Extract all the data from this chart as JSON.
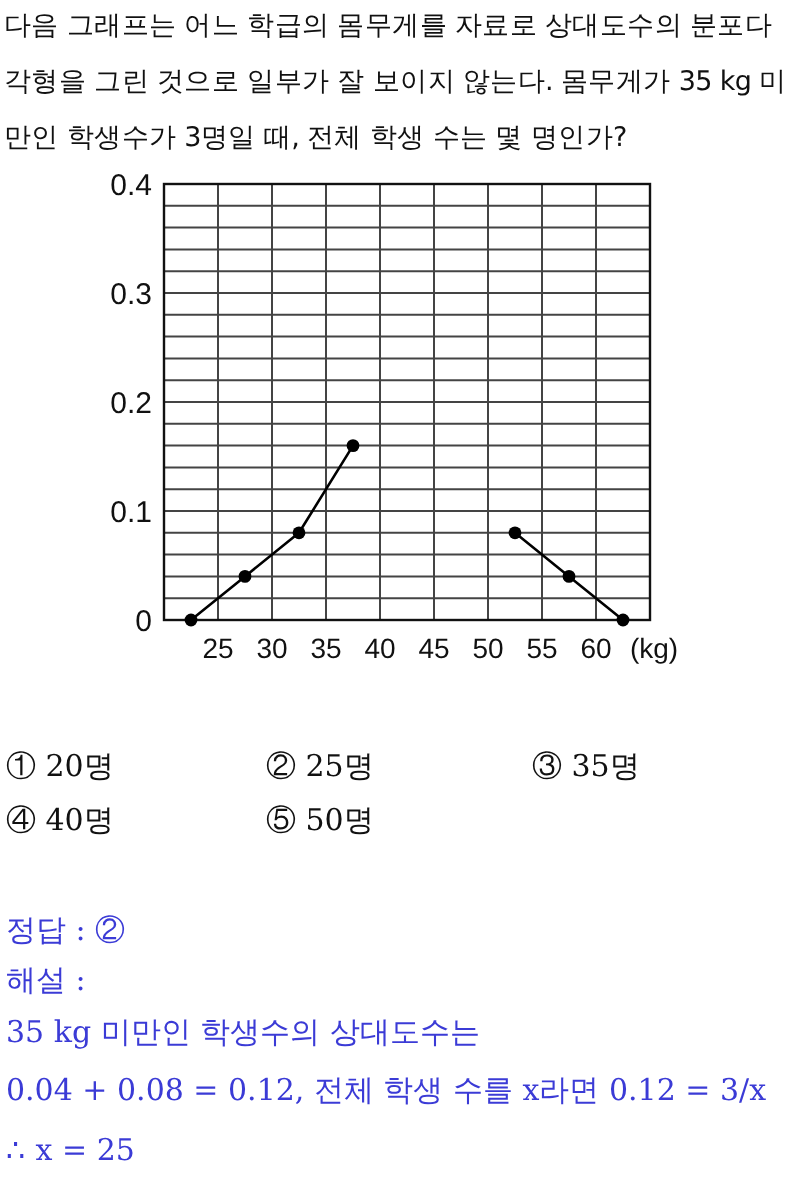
{
  "chart_data": {
    "type": "line",
    "title": "다음 그래프는 어느 학급의 몸무게를 자료로 상대도수의 분포다각형을 그린 것으로 일부가 잘 보이지 않는다. 몸무게가 35 kg 미만인 학생수가 3명일 때, 전체 학생 수는 몇 명인가?",
    "xlabel": "(kg)",
    "x": [
      22.5,
      27.5,
      32.5,
      37.5,
      42.5,
      47.5,
      52.5,
      57.5,
      62.5
    ],
    "values": [
      0,
      0.04,
      0.08,
      0.16,
      null,
      null,
      0.08,
      0.04,
      0
    ],
    "color": "#000000",
    "marker": "circle",
    "xlim": [
      20,
      65
    ],
    "xticks": [
      25,
      30,
      35,
      40,
      45,
      50,
      55,
      60
    ],
    "ylim": [
      0,
      0.4
    ],
    "yticks": [
      0,
      {
        "value": 0.02,
        "label": null
      },
      {
        "value": 0.04,
        "label": null
      },
      {
        "value": 0.06,
        "label": null
      },
      {
        "value": 0.08,
        "label": null
      },
      0.1,
      {
        "value": 0.12,
        "label": null
      },
      {
        "value": 0.14,
        "label": null
      },
      {
        "value": 0.16,
        "label": null
      },
      {
        "value": 0.18,
        "label": null
      },
      0.2,
      {
        "value": 0.22,
        "label": null
      },
      {
        "value": 0.24,
        "label": null
      },
      {
        "value": 0.26,
        "label": null
      },
      {
        "value": 0.28,
        "label": null
      },
      0.3,
      {
        "value": 0.32,
        "label": null
      },
      {
        "value": 0.34,
        "label": null
      },
      {
        "value": 0.36,
        "label": null
      },
      {
        "value": 0.38,
        "label": null
      },
      0.4
    ],
    "grid": true,
    "annotations": [
      "① 20명",
      "② 25명",
      "③ 35명",
      "④ 40명",
      "⑤ 50명",
      "정답 : ②",
      "해설 :",
      "35 kg  미만인 학생수의 상대도수는",
      "0.04 + 0.08 = 0.12,  전체 학생 수를 x라면 0.12 = 3/x",
      "∴  x = 25"
    ]
  }
}
